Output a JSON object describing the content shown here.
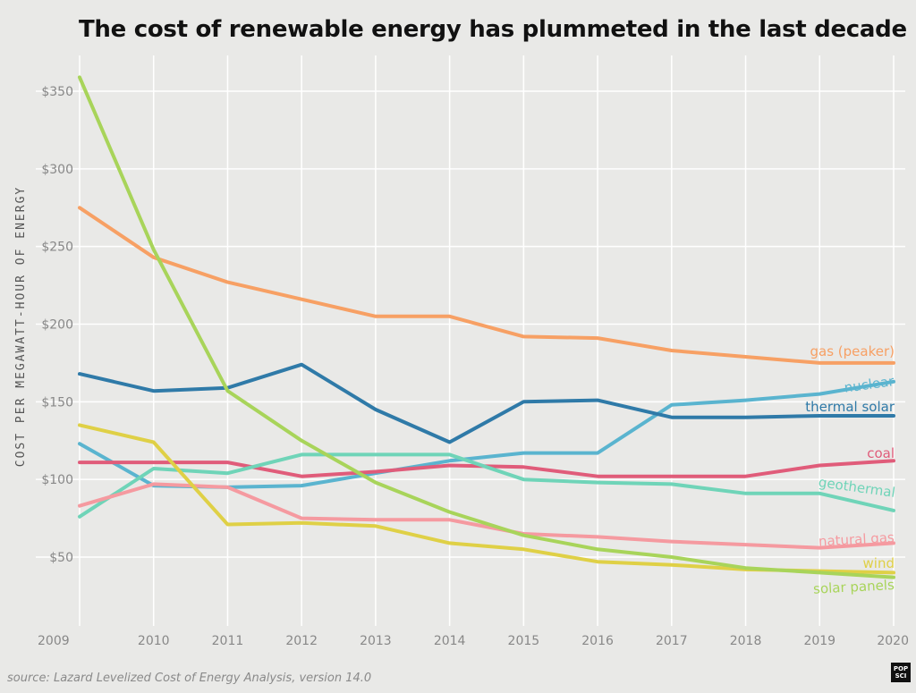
{
  "title": "The cost of renewable energy has plummeted in the last decade",
  "source": "source: Lazard Levelized Cost of Energy Analysis, version 14.0",
  "logo": [
    "POP",
    "SCI"
  ],
  "chart_data": {
    "type": "line",
    "title": "The cost of renewable energy has plummeted in the last decade",
    "xlabel": "",
    "ylabel": "COST PER MEGAWATT-HOUR OF ENERGY",
    "x": [
      2009,
      2010,
      2011,
      2012,
      2013,
      2014,
      2015,
      2016,
      2017,
      2018,
      2019,
      2020
    ],
    "xlim": [
      2009,
      2020
    ],
    "ylim": [
      0,
      365
    ],
    "yticks": [
      50,
      100,
      150,
      200,
      250,
      300,
      350
    ],
    "ytick_labels": [
      "$50",
      "$100",
      "$150",
      "$200",
      "$250",
      "$300",
      "$350"
    ],
    "grid": true,
    "legend": "inline labels at right end of each line",
    "series": [
      {
        "name": "gas (peaker)",
        "color": "#f7a064",
        "values": [
          275,
          243,
          227,
          216,
          205,
          205,
          192,
          191,
          183,
          179,
          175,
          175
        ]
      },
      {
        "name": "nuclear",
        "color": "#5ab4cf",
        "values": [
          123,
          96,
          95,
          96,
          104,
          112,
          117,
          117,
          148,
          151,
          155,
          163
        ]
      },
      {
        "name": "thermal solar",
        "color": "#2f7aa8",
        "values": [
          168,
          157,
          159,
          174,
          145,
          124,
          150,
          151,
          140,
          140,
          141,
          141
        ]
      },
      {
        "name": "coal",
        "color": "#e05c7a",
        "values": [
          111,
          111,
          111,
          102,
          105,
          109,
          108,
          102,
          102,
          102,
          109,
          112
        ]
      },
      {
        "name": "geothermal",
        "color": "#6fd4b8",
        "values": [
          76,
          107,
          104,
          116,
          116,
          116,
          100,
          98,
          97,
          91,
          91,
          80
        ]
      },
      {
        "name": "natural gas",
        "color": "#f59aa0",
        "values": [
          83,
          97,
          95,
          75,
          74,
          74,
          65,
          63,
          60,
          58,
          56,
          59
        ]
      },
      {
        "name": "wind",
        "color": "#dfd046",
        "values": [
          135,
          124,
          71,
          72,
          70,
          59,
          55,
          47,
          45,
          42,
          41,
          40
        ]
      },
      {
        "name": "solar panels",
        "color": "#a8d45a",
        "values": [
          359,
          248,
          157,
          125,
          98,
          79,
          64,
          55,
          50,
          43,
          40,
          37
        ]
      }
    ]
  }
}
